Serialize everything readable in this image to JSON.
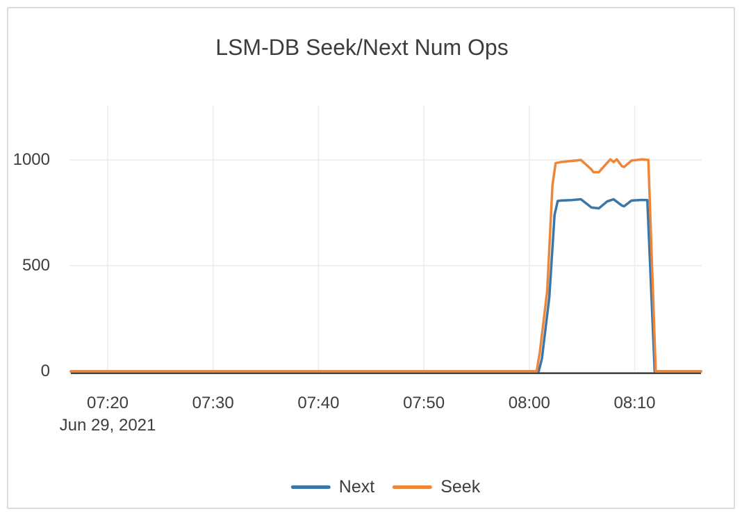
{
  "window": {
    "background_color": "#ffffff",
    "card_border_color": "#dcdcdc"
  },
  "chart_data": {
    "type": "line",
    "title": "LSM-DB Seek/Next Num Ops",
    "x_axis": {
      "unit": "clock time HH:MM; point x values encoded as decimal minutes after 07:00",
      "date_label": "Jun 29, 2021",
      "ticks": [
        {
          "m": 20,
          "label": "07:20"
        },
        {
          "m": 30,
          "label": "07:30"
        },
        {
          "m": 40,
          "label": "07:40"
        },
        {
          "m": 50,
          "label": "07:50"
        },
        {
          "m": 60,
          "label": "08:00"
        },
        {
          "m": 70,
          "label": "08:10"
        }
      ],
      "range_minutes": [
        16.5,
        76.3
      ],
      "grid": true
    },
    "y_axis": {
      "ticks": [
        {
          "v": 0,
          "label": "0"
        },
        {
          "v": 500,
          "label": "500"
        },
        {
          "v": 1000,
          "label": "1000"
        }
      ],
      "ylim": [
        0,
        1250
      ],
      "grid": true,
      "zeroline_color": "#3a3a3a"
    },
    "series": [
      {
        "name": "Next",
        "color": "#3a76a8",
        "points": [
          [
            16.5,
            0
          ],
          [
            60.9,
            0
          ],
          [
            61.2,
            60
          ],
          [
            61.9,
            350
          ],
          [
            62.4,
            740
          ],
          [
            62.7,
            806
          ],
          [
            63.0,
            808
          ],
          [
            64.0,
            810
          ],
          [
            64.9,
            814
          ],
          [
            65.9,
            775
          ],
          [
            66.6,
            771
          ],
          [
            67.4,
            804
          ],
          [
            68.0,
            814
          ],
          [
            68.8,
            784
          ],
          [
            69.0,
            781
          ],
          [
            69.7,
            808
          ],
          [
            70.7,
            811
          ],
          [
            71.2,
            810
          ],
          [
            71.9,
            0
          ],
          [
            76.3,
            0
          ]
        ]
      },
      {
        "name": "Seek",
        "color": "#ee8639",
        "points": [
          [
            16.5,
            0
          ],
          [
            60.7,
            0
          ],
          [
            61.0,
            90
          ],
          [
            61.7,
            380
          ],
          [
            62.2,
            880
          ],
          [
            62.5,
            985
          ],
          [
            63.0,
            990
          ],
          [
            64.0,
            995
          ],
          [
            64.9,
            1000
          ],
          [
            65.9,
            955
          ],
          [
            66.1,
            942
          ],
          [
            66.6,
            942
          ],
          [
            67.4,
            987
          ],
          [
            67.7,
            1003
          ],
          [
            68.0,
            990
          ],
          [
            68.3,
            1003
          ],
          [
            68.8,
            970
          ],
          [
            69.0,
            967
          ],
          [
            69.7,
            997
          ],
          [
            70.7,
            1003
          ],
          [
            71.3,
            1000
          ],
          [
            72.0,
            0
          ],
          [
            76.3,
            0
          ]
        ]
      }
    ],
    "legend": {
      "position": "bottom-center",
      "entries": [
        "Next",
        "Seek"
      ]
    },
    "grid_color": "#ececec",
    "text_color": "#3d3d3d"
  }
}
